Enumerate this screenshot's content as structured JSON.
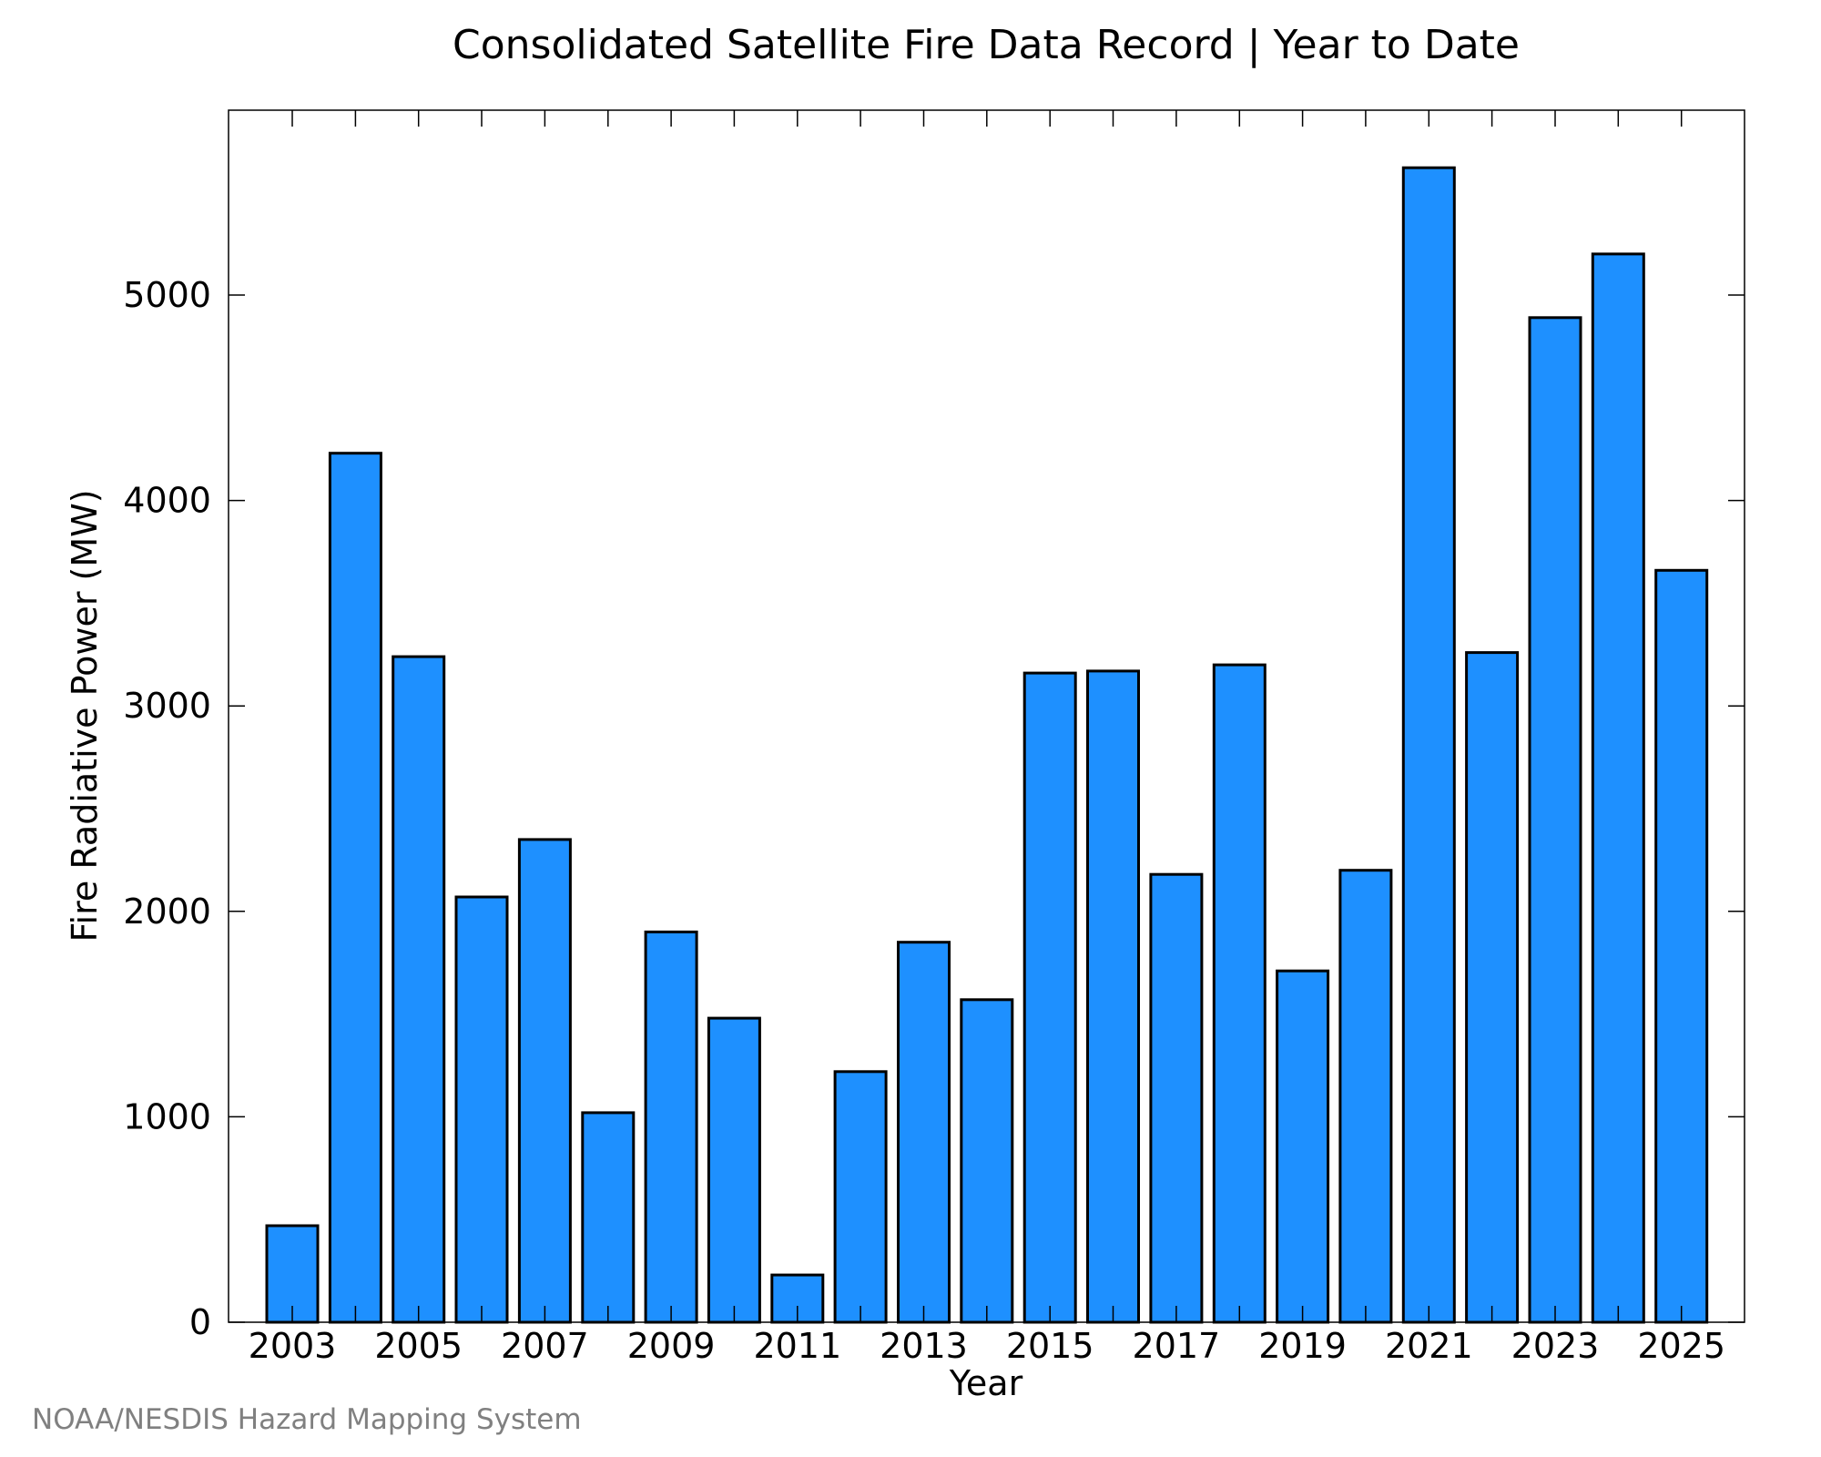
{
  "chart_data": {
    "type": "bar",
    "title": "Consolidated Satellite Fire Data Record | Year to Date",
    "xlabel": "Year",
    "ylabel": "Fire Radiative Power (MW)",
    "categories": [
      "2003",
      "2004",
      "2005",
      "2006",
      "2007",
      "2008",
      "2009",
      "2010",
      "2011",
      "2012",
      "2013",
      "2014",
      "2015",
      "2016",
      "2017",
      "2018",
      "2019",
      "2020",
      "2021",
      "2022",
      "2023",
      "2024",
      "2025"
    ],
    "values": [
      470,
      4230,
      3240,
      2070,
      2350,
      1020,
      1900,
      1480,
      230,
      1220,
      1850,
      1570,
      3160,
      3170,
      2180,
      3200,
      1710,
      2200,
      5620,
      3260,
      4890,
      5200,
      3660
    ],
    "x_tick_labels": [
      "2003",
      "2005",
      "2007",
      "2009",
      "2011",
      "2013",
      "2015",
      "2017",
      "2019",
      "2021",
      "2023",
      "2025"
    ],
    "y_tick_labels": [
      "0",
      "1000",
      "2000",
      "3000",
      "4000",
      "5000"
    ],
    "ylim": [
      0,
      5900
    ],
    "bar_color": "#1E90FF",
    "bar_edge_color": "#000000",
    "grid": false,
    "legend": "none"
  },
  "footer": {
    "credit": "NOAA/NESDIS Hazard Mapping System"
  }
}
